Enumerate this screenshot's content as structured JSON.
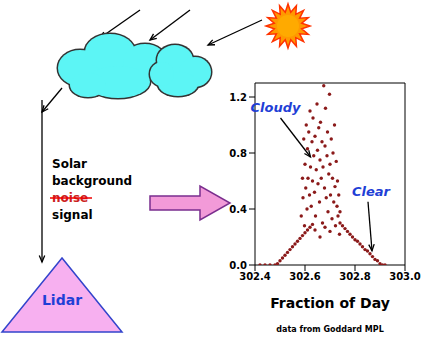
{
  "diagram": {
    "source_label": [
      {
        "text": "Solar"
      },
      {
        "text": "background"
      },
      {
        "text": "noise",
        "struck": true
      },
      {
        "text": "signal"
      }
    ],
    "receiver": "Lidar"
  },
  "chart_data": {
    "type": "scatter",
    "xlabel": "Fraction of Day",
    "source": "data from Goddard MPL",
    "color": "#8b1a1a",
    "marker": "circle",
    "xlim": [
      302.4,
      303.0
    ],
    "ylim": [
      0,
      1.3
    ],
    "xticks": [
      302.4,
      302.6,
      302.8,
      {
        "value": 303,
        "label": "303.0"
      }
    ],
    "yticks": [
      {
        "value": 0,
        "label": "0.0"
      },
      0.4,
      0.8,
      1.2
    ],
    "annotations": [
      {
        "text": "Cloudy",
        "x": 302.63,
        "y": 0.75
      },
      {
        "text": "Clear",
        "x": 302.86,
        "y": 0.08
      }
    ],
    "x": [
      302.42,
      302.44,
      302.46,
      302.48,
      302.49,
      302.5,
      302.51,
      302.52,
      302.53,
      302.54,
      302.55,
      302.56,
      302.57,
      302.58,
      302.59,
      302.6,
      302.61,
      302.62,
      302.63,
      302.74,
      302.75,
      302.76,
      302.77,
      302.78,
      302.79,
      302.8,
      302.81,
      302.82,
      302.83,
      302.84,
      302.85,
      302.86,
      302.87,
      302.88,
      302.89,
      302.9,
      302.91,
      302.92,
      302.585,
      302.59,
      302.592,
      302.595,
      302.598,
      302.6,
      302.603,
      302.605,
      302.608,
      302.61,
      302.612,
      302.615,
      302.618,
      302.62,
      302.622,
      302.625,
      302.628,
      302.63,
      302.632,
      302.635,
      302.638,
      302.64,
      302.642,
      302.645,
      302.648,
      302.65,
      302.652,
      302.655,
      302.658,
      302.66,
      302.662,
      302.665,
      302.668,
      302.67,
      302.672,
      302.675,
      302.678,
      302.68,
      302.682,
      302.685,
      302.688,
      302.69,
      302.692,
      302.695,
      302.698,
      302.7,
      302.702,
      302.705,
      302.708,
      302.71,
      302.712,
      302.715,
      302.718,
      302.72,
      302.722,
      302.725,
      302.728,
      302.73,
      302.732,
      302.735,
      302.738,
      302.74,
      302.64,
      302.66,
      302.68,
      302.7
    ],
    "values": [
      0.0,
      0.0,
      0.0,
      0.0,
      0.01,
      0.03,
      0.05,
      0.07,
      0.09,
      0.11,
      0.13,
      0.15,
      0.17,
      0.19,
      0.21,
      0.23,
      0.25,
      0.27,
      0.29,
      0.3,
      0.28,
      0.26,
      0.24,
      0.22,
      0.2,
      0.18,
      0.17,
      0.15,
      0.13,
      0.11,
      0.1,
      0.08,
      0.06,
      0.04,
      0.03,
      0.01,
      0.0,
      0.0,
      0.35,
      0.62,
      0.48,
      0.9,
      0.28,
      0.72,
      0.55,
      1.0,
      0.4,
      0.83,
      0.62,
      0.95,
      0.5,
      1.1,
      0.7,
      0.42,
      0.88,
      0.6,
      1.05,
      0.78,
      0.52,
      0.92,
      0.35,
      0.68,
      1.15,
      0.82,
      0.58,
      0.98,
      0.45,
      0.75,
      1.02,
      0.62,
      0.88,
      0.3,
      0.7,
      1.28,
      0.55,
      0.85,
      1.12,
      0.48,
      0.78,
      0.95,
      0.38,
      0.65,
      1.22,
      0.72,
      0.5,
      0.9,
      0.33,
      0.62,
      0.8,
      0.45,
      1.0,
      0.56,
      0.28,
      0.74,
      0.42,
      0.6,
      0.35,
      0.5,
      0.22,
      0.38,
      0.25,
      0.2,
      0.27,
      0.24
    ]
  }
}
